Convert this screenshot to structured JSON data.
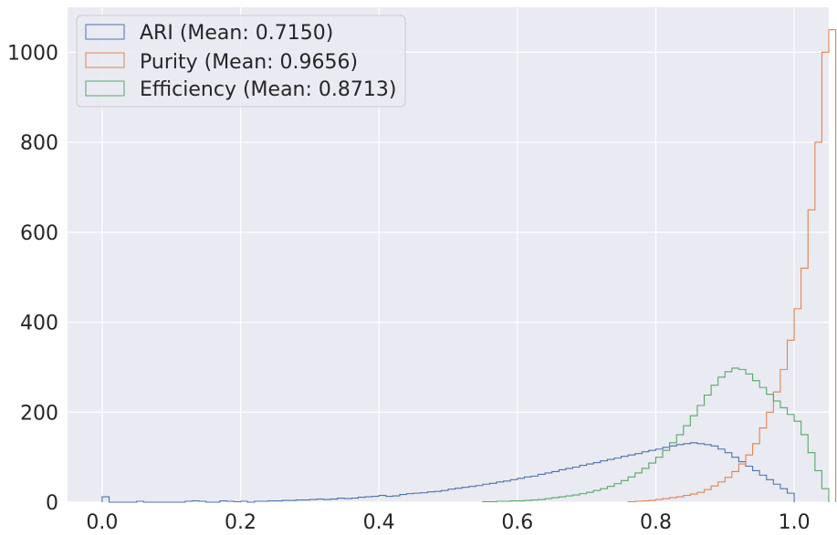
{
  "chart_data": {
    "type": "histogram",
    "title": "",
    "xlabel": "",
    "ylabel": "",
    "xlim": [
      -0.05,
      1.05
    ],
    "ylim": [
      0,
      1100
    ],
    "bin_width": 0.01,
    "grid": true,
    "legend_placement": "top-left",
    "x_ticks": [
      0.0,
      0.2,
      0.4,
      0.6,
      0.8,
      1.0
    ],
    "x_tick_labels": [
      "0.0",
      "0.2",
      "0.4",
      "0.6",
      "0.8",
      "1.0"
    ],
    "y_ticks": [
      0,
      200,
      400,
      600,
      800,
      1000
    ],
    "y_tick_labels": [
      "0",
      "200",
      "400",
      "600",
      "800",
      "1000"
    ],
    "background_color": "#eaeaf2",
    "grid_color": "#ffffff",
    "series": [
      {
        "name": "ARI (Mean: 0.7150)",
        "color": "#4c72b0",
        "start": 0.0,
        "counts": [
          12,
          0,
          0,
          0,
          0,
          2,
          0,
          0,
          0,
          0,
          0,
          0,
          2,
          3,
          2,
          0,
          0,
          3,
          2,
          1,
          2,
          0,
          2,
          2,
          3,
          3,
          4,
          4,
          5,
          5,
          6,
          7,
          6,
          7,
          9,
          8,
          9,
          11,
          12,
          13,
          15,
          13,
          14,
          17,
          19,
          20,
          21,
          23,
          24,
          26,
          29,
          31,
          33,
          35,
          37,
          40,
          42,
          45,
          47,
          50,
          53,
          56,
          58,
          62,
          65,
          68,
          72,
          75,
          78,
          82,
          85,
          88,
          92,
          95,
          98,
          102,
          105,
          108,
          112,
          115,
          118,
          122,
          125,
          128,
          130,
          132,
          130,
          128,
          125,
          118,
          110,
          100,
          90,
          80,
          70,
          60,
          50,
          40,
          30,
          20
        ]
      },
      {
        "name": "Purity (Mean: 0.9656)",
        "color": "#dd8452",
        "start": 0.76,
        "counts": [
          1,
          2,
          3,
          4,
          6,
          8,
          10,
          12,
          15,
          18,
          22,
          28,
          36,
          45,
          55,
          68,
          85,
          105,
          130,
          165,
          200,
          245,
          295,
          360,
          430,
          520,
          650,
          800,
          1000,
          1050
        ]
      },
      {
        "name": "Efficiency (Mean: 0.8713)",
        "color": "#55a868",
        "start": 0.55,
        "counts": [
          1,
          1,
          2,
          2,
          3,
          3,
          4,
          5,
          6,
          8,
          10,
          12,
          14,
          16,
          19,
          22,
          26,
          30,
          35,
          41,
          48,
          56,
          65,
          75,
          87,
          100,
          115,
          132,
          150,
          170,
          192,
          215,
          238,
          260,
          278,
          290,
          298,
          295,
          285,
          270,
          255,
          240,
          225,
          210,
          195,
          180,
          150,
          110,
          70,
          30
        ]
      }
    ]
  }
}
